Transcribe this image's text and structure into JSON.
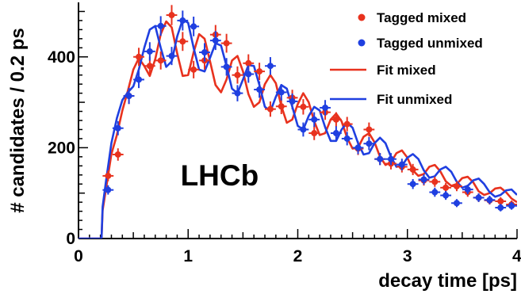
{
  "chart_data": {
    "type": "scatter",
    "xlabel": "decay time [ps]",
    "ylabel": "# candidates / 0.2 ps",
    "xlim": [
      0,
      4
    ],
    "ylim": [
      0,
      520
    ],
    "x_ticks": [
      "0",
      "1",
      "2",
      "3",
      "4"
    ],
    "y_ticks": [
      "0",
      "200",
      "400"
    ],
    "grid": false,
    "legend_position": "top-right",
    "annotations": [
      "LHCb"
    ],
    "colors": {
      "mixed": "#e8321e",
      "unmixed": "#1f3fe0"
    },
    "series": [
      {
        "name": "Tagged mixed",
        "kind": "points",
        "x": [
          0.27,
          0.36,
          0.46,
          0.55,
          0.65,
          0.75,
          0.85,
          0.95,
          1.05,
          1.15,
          1.25,
          1.35,
          1.45,
          1.55,
          1.65,
          1.75,
          1.85,
          1.95,
          2.05,
          2.15,
          2.25,
          2.35,
          2.45,
          2.55,
          2.65,
          2.75,
          2.85,
          2.95,
          3.05,
          3.15,
          3.25,
          3.35,
          3.45,
          3.55,
          3.65,
          3.75,
          3.85,
          3.95
        ],
        "y": [
          138,
          185,
          314,
          400,
          380,
          392,
          492,
          434,
          372,
          392,
          449,
          430,
          360,
          386,
          368,
          285,
          291,
          310,
          290,
          232,
          278,
          262,
          252,
          198,
          240,
          175,
          165,
          158,
          152,
          128,
          125,
          112,
          115,
          102,
          90,
          84,
          82,
          75
        ]
      },
      {
        "name": "Tagged unmixed",
        "kind": "points",
        "x": [
          0.27,
          0.36,
          0.46,
          0.55,
          0.65,
          0.75,
          0.85,
          0.95,
          1.05,
          1.15,
          1.25,
          1.35,
          1.45,
          1.55,
          1.65,
          1.75,
          1.85,
          1.95,
          2.05,
          2.15,
          2.25,
          2.35,
          2.45,
          2.55,
          2.65,
          2.75,
          2.85,
          2.95,
          3.05,
          3.15,
          3.25,
          3.35,
          3.45,
          3.55,
          3.65,
          3.75,
          3.85,
          3.95
        ],
        "y": [
          107,
          243,
          314,
          350,
          412,
          468,
          402,
          480,
          467,
          410,
          436,
          378,
          320,
          362,
          328,
          380,
          322,
          302,
          240,
          262,
          288,
          232,
          220,
          200,
          209,
          175,
          175,
          163,
          120,
          130,
          102,
          95,
          78,
          108,
          90,
          85,
          68,
          72
        ]
      },
      {
        "name": "Fit mixed",
        "kind": "line",
        "x": [
          0.0,
          0.21,
          0.22,
          0.25,
          0.3,
          0.35,
          0.4,
          0.45,
          0.5,
          0.55,
          0.6,
          0.65,
          0.7,
          0.75,
          0.8,
          0.85,
          0.9,
          0.95,
          1.0,
          1.05,
          1.1,
          1.15,
          1.2,
          1.25,
          1.3,
          1.35,
          1.4,
          1.45,
          1.5,
          1.55,
          1.6,
          1.65,
          1.7,
          1.75,
          1.8,
          1.85,
          1.9,
          1.95,
          2.0,
          2.05,
          2.1,
          2.15,
          2.2,
          2.25,
          2.3,
          2.35,
          2.4,
          2.45,
          2.5,
          2.55,
          2.6,
          2.65,
          2.7,
          2.75,
          2.8,
          2.85,
          2.9,
          2.95,
          3.0,
          3.05,
          3.1,
          3.15,
          3.2,
          3.25,
          3.3,
          3.35,
          3.4,
          3.45,
          3.5,
          3.55,
          3.6,
          3.65,
          3.7,
          3.75,
          3.8,
          3.85,
          3.9,
          3.95,
          4.0
        ],
        "y": [
          0,
          0,
          62,
          108,
          186,
          228,
          282,
          325,
          372,
          397,
          380,
          358,
          395,
          450,
          478,
          465,
          408,
          358,
          360,
          410,
          450,
          440,
          390,
          338,
          322,
          350,
          392,
          402,
          368,
          318,
          290,
          300,
          340,
          360,
          342,
          292,
          255,
          262,
          296,
          320,
          300,
          258,
          228,
          232,
          262,
          275,
          258,
          222,
          198,
          200,
          224,
          232,
          212,
          180,
          162,
          168,
          188,
          194,
          178,
          150,
          138,
          142,
          158,
          162,
          148,
          126,
          116,
          120,
          133,
          136,
          124,
          104,
          96,
          100,
          110,
          112,
          102,
          88,
          80
        ]
      },
      {
        "name": "Fit unmixed",
        "kind": "line",
        "x": [
          0.0,
          0.21,
          0.22,
          0.25,
          0.3,
          0.35,
          0.4,
          0.45,
          0.5,
          0.55,
          0.6,
          0.65,
          0.7,
          0.75,
          0.8,
          0.85,
          0.9,
          0.95,
          1.0,
          1.05,
          1.1,
          1.15,
          1.2,
          1.25,
          1.3,
          1.35,
          1.4,
          1.45,
          1.5,
          1.55,
          1.6,
          1.65,
          1.7,
          1.75,
          1.8,
          1.85,
          1.9,
          1.95,
          2.0,
          2.05,
          2.1,
          2.15,
          2.2,
          2.25,
          2.3,
          2.35,
          2.4,
          2.45,
          2.5,
          2.55,
          2.6,
          2.65,
          2.7,
          2.75,
          2.8,
          2.85,
          2.9,
          2.95,
          3.0,
          3.05,
          3.1,
          3.15,
          3.2,
          3.25,
          3.3,
          3.35,
          3.4,
          3.45,
          3.5,
          3.55,
          3.6,
          3.65,
          3.7,
          3.75,
          3.8,
          3.85,
          3.9,
          3.95,
          4.0
        ],
        "y": [
          0,
          0,
          70,
          125,
          210,
          265,
          305,
          322,
          335,
          372,
          420,
          460,
          468,
          420,
          378,
          390,
          445,
          482,
          475,
          420,
          372,
          368,
          398,
          430,
          425,
          380,
          330,
          320,
          350,
          382,
          380,
          338,
          290,
          280,
          312,
          338,
          330,
          290,
          248,
          240,
          270,
          290,
          282,
          245,
          215,
          215,
          240,
          255,
          244,
          210,
          185,
          188,
          210,
          222,
          210,
          180,
          158,
          160,
          178,
          186,
          175,
          150,
          134,
          137,
          152,
          158,
          147,
          125,
          112,
          116,
          128,
          132,
          120,
          102,
          92,
          96,
          106,
          108,
          96
        ]
      }
    ]
  }
}
